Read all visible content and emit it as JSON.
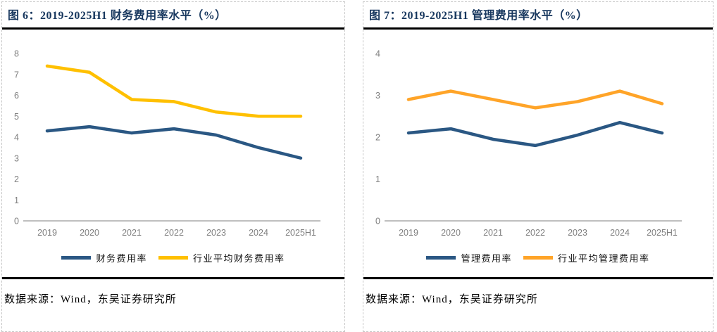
{
  "colors": {
    "title_navy": "#17375E",
    "series_blue": "#2A5783",
    "series_gold": "#FFC000",
    "series_orange": "#FFA428",
    "axis_line": "#BFBFBF",
    "axis_label": "#7F7F7F",
    "divider_black": "#000000"
  },
  "chart_data": [
    {
      "type": "line",
      "title": "图 6：2019-2025H1 财务费用率水平（%）",
      "source": "数据来源：Wind，东吴证券研究所",
      "categories": [
        "2019",
        "2020",
        "2021",
        "2022",
        "2023",
        "2024",
        "2025H1"
      ],
      "series": [
        {
          "name": "财务费用率",
          "color": "#2A5783",
          "values": [
            4.3,
            4.5,
            4.2,
            4.4,
            4.1,
            3.5,
            3.0
          ]
        },
        {
          "name": "行业平均财务费用率",
          "color": "#FFC000",
          "values": [
            7.4,
            7.1,
            5.8,
            5.7,
            5.2,
            5.0,
            5.0
          ]
        }
      ],
      "ylim": [
        0,
        8
      ],
      "ytick_step": 1,
      "grid": false,
      "legend_position": "bottom"
    },
    {
      "type": "line",
      "title": "图 7：2019-2025H1 管理费用率水平（%）",
      "source": "数据来源：Wind，东吴证券研究所",
      "categories": [
        "2019",
        "2020",
        "2021",
        "2022",
        "2023",
        "2024",
        "2025H1"
      ],
      "series": [
        {
          "name": "管理费用率",
          "color": "#2A5783",
          "values": [
            2.1,
            2.2,
            1.95,
            1.8,
            2.05,
            2.35,
            2.1
          ]
        },
        {
          "name": "行业平均管理费用率",
          "color": "#FFA428",
          "values": [
            2.9,
            3.1,
            2.9,
            2.7,
            2.85,
            3.1,
            2.8
          ]
        }
      ],
      "ylim": [
        0,
        4
      ],
      "ytick_step": 1,
      "grid": false,
      "legend_position": "bottom"
    }
  ]
}
